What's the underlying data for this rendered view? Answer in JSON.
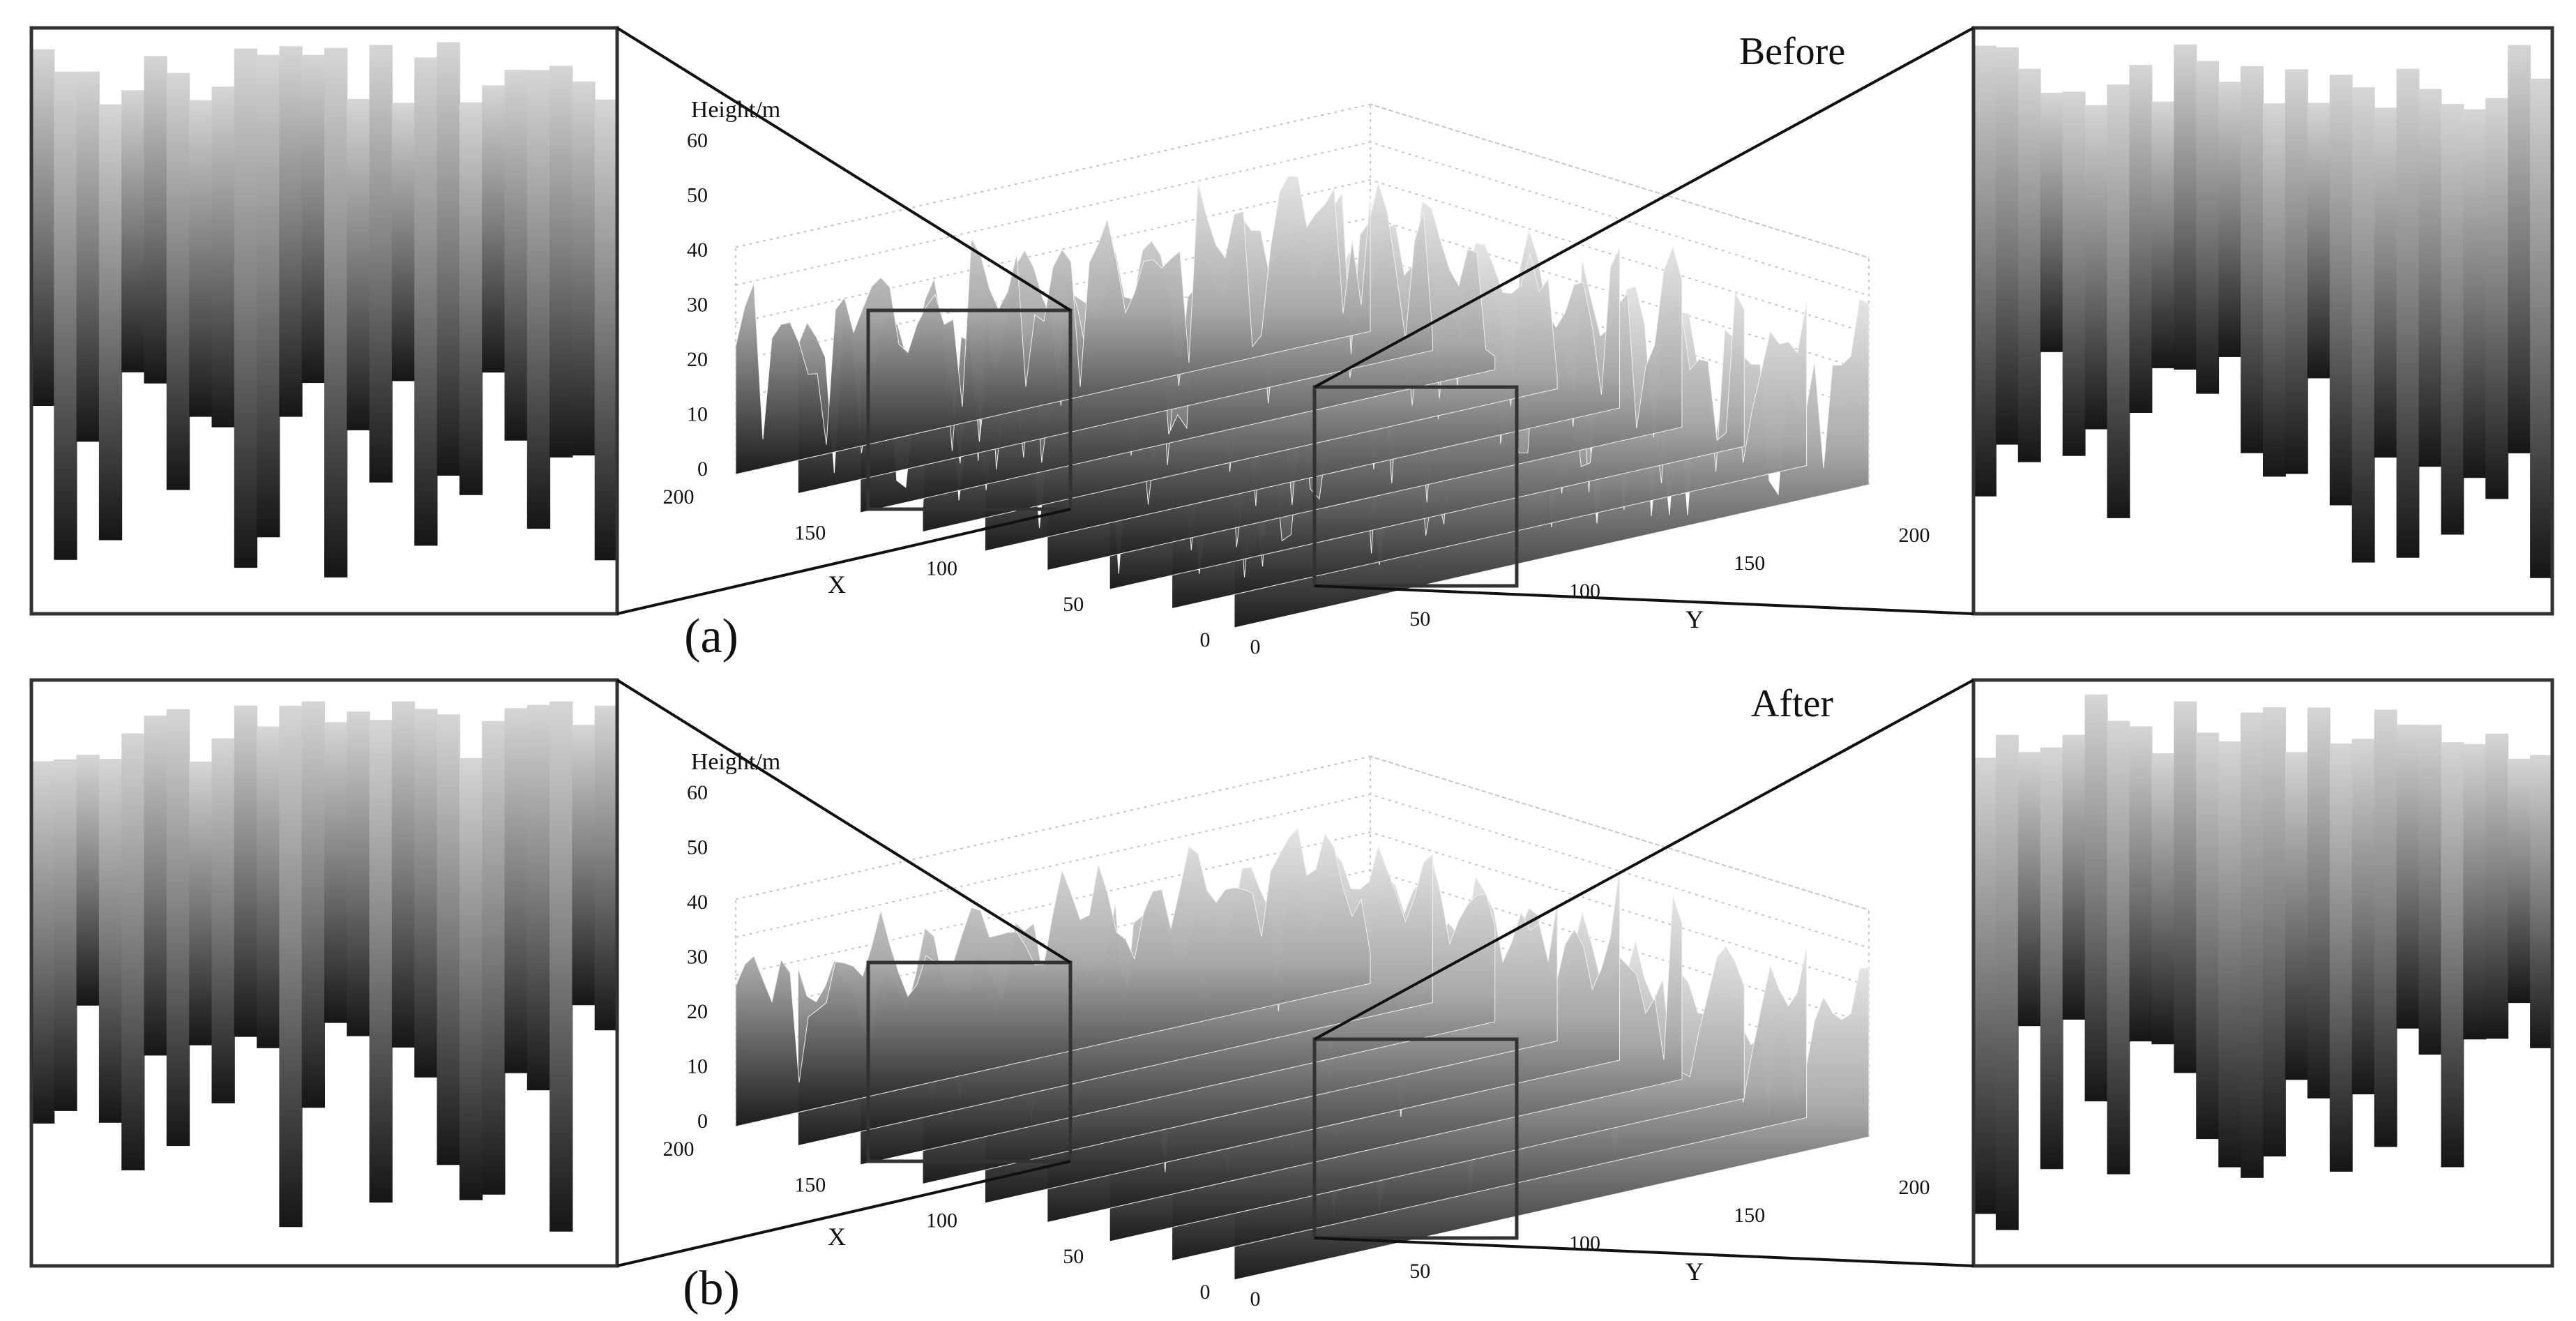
{
  "chart_data": [
    {
      "type": "surface",
      "panel_label": "(a)",
      "title": "Before",
      "zlabel": "Height/m",
      "xlabel": "X",
      "ylabel": "Y",
      "xlim": [
        0,
        200
      ],
      "ylim": [
        0,
        200
      ],
      "zlim": [
        0,
        60
      ],
      "x_ticks": [
        "0",
        "50",
        "100",
        "150",
        "200"
      ],
      "y_ticks": [
        "0",
        "50",
        "100",
        "150",
        "200"
      ],
      "z_ticks": [
        "0",
        "10",
        "20",
        "30",
        "40",
        "50",
        "60"
      ],
      "grid": true,
      "colormap": "gray",
      "zoom_insets": [
        "left",
        "right"
      ]
    },
    {
      "type": "surface",
      "panel_label": "(b)",
      "title": "After",
      "zlabel": "Height/m",
      "xlabel": "X",
      "ylabel": "Y",
      "xlim": [
        0,
        200
      ],
      "ylim": [
        0,
        200
      ],
      "zlim": [
        0,
        60
      ],
      "x_ticks": [
        "0",
        "50",
        "100",
        "150",
        "200"
      ],
      "y_ticks": [
        "0",
        "50",
        "100",
        "150",
        "200"
      ],
      "z_ticks": [
        "0",
        "10",
        "20",
        "30",
        "40",
        "50",
        "60"
      ],
      "grid": true,
      "colormap": "gray",
      "zoom_insets": [
        "left",
        "right"
      ]
    }
  ],
  "colors": {
    "surface_high": "#d8d8d8",
    "surface_low": "#1a1a1a",
    "frame": "#333333",
    "grid": "#c8c8c8"
  }
}
